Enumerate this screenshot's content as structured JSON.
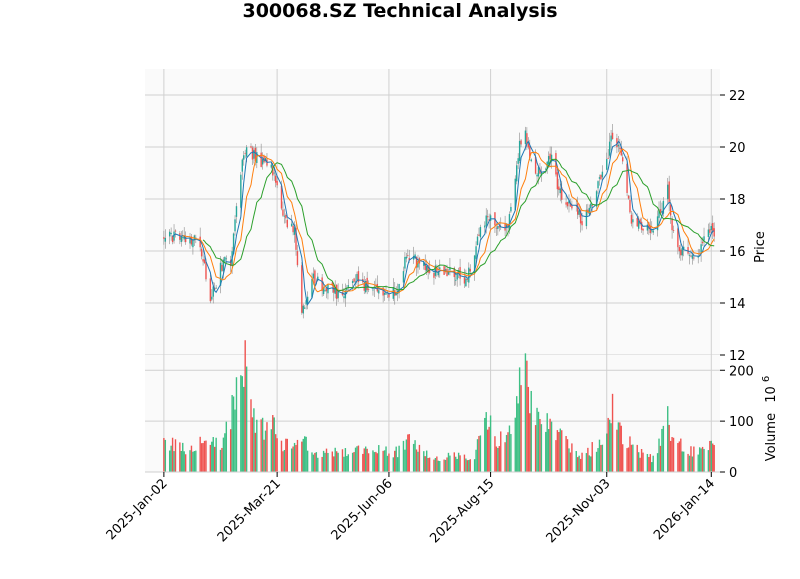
{
  "title": "300068.SZ Technical Analysis",
  "colors": {
    "up": "#26a69a",
    "up_volume": "#3dbf84",
    "down": "#ef5350",
    "ma_fast": "#1f77b4",
    "ma_mid": "#ff7f0e",
    "ma_slow": "#2ca02c",
    "panel_bg": "#fafafa",
    "grid": "#d0d0d0"
  },
  "chart_data": {
    "type": "candlestick",
    "title": "300068.SZ Technical Analysis",
    "price_panel": {
      "ylabel": "Price",
      "ylim": [
        12,
        23
      ],
      "yticks": [
        12,
        14,
        16,
        18,
        20,
        22
      ],
      "ytick_labels": [
        "12",
        "14",
        "16",
        "18",
        "20",
        "22"
      ],
      "grid": true
    },
    "volume_panel": {
      "ylabel": "Volume",
      "yunit_label": "10",
      "yunit_exponent": "6",
      "ylim": [
        0,
        230
      ],
      "yticks": [
        0,
        100,
        200
      ],
      "ytick_labels": [
        "0",
        "100",
        "200"
      ],
      "grid": true
    },
    "xlim": [
      "2024-12-20",
      "2026-01-20"
    ],
    "x_ticks": [
      "2025-01-02",
      "2025-03-21",
      "2025-06-06",
      "2025-08-15",
      "2025-11-03",
      "2026-01-14"
    ],
    "x_tick_labels": [
      "2025-Jan-02",
      "2025-Mar-21",
      "2025-Jun-06",
      "2025-Aug-15",
      "2025-Nov-03",
      "2026-Jan-14"
    ],
    "price_keypoints": [
      [
        "2025-01-02",
        16.6
      ],
      [
        "2025-01-10",
        16.5
      ],
      [
        "2025-01-20",
        16.5
      ],
      [
        "2025-01-27",
        16.2
      ],
      [
        "2025-02-03",
        14.2
      ],
      [
        "2025-02-08",
        15.0
      ],
      [
        "2025-02-12",
        15.6
      ],
      [
        "2025-02-17",
        15.6
      ],
      [
        "2025-02-23",
        18.8
      ],
      [
        "2025-02-28",
        20.2
      ],
      [
        "2025-03-03",
        19.8
      ],
      [
        "2025-03-08",
        19.5
      ],
      [
        "2025-03-12",
        19.3
      ],
      [
        "2025-03-16",
        19.6
      ],
      [
        "2025-03-20",
        18.5
      ],
      [
        "2025-03-26",
        17.2
      ],
      [
        "2025-04-02",
        16.8
      ],
      [
        "2025-04-07",
        13.5
      ],
      [
        "2025-04-10",
        14.3
      ],
      [
        "2025-04-15",
        15.0
      ],
      [
        "2025-04-22",
        14.5
      ],
      [
        "2025-04-28",
        14.6
      ],
      [
        "2025-05-02",
        14.2
      ],
      [
        "2025-05-10",
        14.8
      ],
      [
        "2025-05-15",
        15.1
      ],
      [
        "2025-05-20",
        14.7
      ],
      [
        "2025-05-25",
        14.6
      ],
      [
        "2025-05-30",
        14.5
      ],
      [
        "2025-06-05",
        14.4
      ],
      [
        "2025-06-12",
        14.5
      ],
      [
        "2025-06-18",
        15.9
      ],
      [
        "2025-06-25",
        15.6
      ],
      [
        "2025-07-01",
        15.3
      ],
      [
        "2025-07-08",
        15.2
      ],
      [
        "2025-07-15",
        15.2
      ],
      [
        "2025-07-22",
        15.1
      ],
      [
        "2025-07-29",
        14.8
      ],
      [
        "2025-08-04",
        15.9
      ],
      [
        "2025-08-08",
        17.0
      ],
      [
        "2025-08-13",
        17.3
      ],
      [
        "2025-08-18",
        16.9
      ],
      [
        "2025-08-22",
        16.8
      ],
      [
        "2025-08-27",
        17.0
      ],
      [
        "2025-09-01",
        19.0
      ],
      [
        "2025-09-04",
        20.2
      ],
      [
        "2025-09-08",
        20.5
      ],
      [
        "2025-09-12",
        19.5
      ],
      [
        "2025-09-17",
        19.0
      ],
      [
        "2025-09-22",
        19.3
      ],
      [
        "2025-09-26",
        19.8
      ],
      [
        "2025-09-30",
        18.5
      ],
      [
        "2025-10-06",
        17.8
      ],
      [
        "2025-10-12",
        17.6
      ],
      [
        "2025-10-17",
        17.2
      ],
      [
        "2025-10-21",
        17.4
      ],
      [
        "2025-10-25",
        17.8
      ],
      [
        "2025-10-30",
        19.0
      ],
      [
        "2025-11-03",
        19.6
      ],
      [
        "2025-11-07",
        20.4
      ],
      [
        "2025-11-11",
        20.0
      ],
      [
        "2025-11-15",
        19.3
      ],
      [
        "2025-11-20",
        17.0
      ],
      [
        "2025-11-25",
        17.1
      ],
      [
        "2025-11-30",
        16.8
      ],
      [
        "2025-12-05",
        17.0
      ],
      [
        "2025-12-10",
        17.5
      ],
      [
        "2025-12-15",
        18.4
      ],
      [
        "2025-12-18",
        17.0
      ],
      [
        "2025-12-22",
        16.2
      ],
      [
        "2025-12-27",
        15.9
      ],
      [
        "2025-12-31",
        15.8
      ],
      [
        "2026-01-05",
        16.0
      ],
      [
        "2026-01-10",
        16.4
      ],
      [
        "2026-01-14",
        16.9
      ],
      [
        "2026-01-16",
        16.8
      ]
    ],
    "volume_keypoints": [
      [
        "2025-01-02",
        60
      ],
      [
        "2025-01-15",
        45
      ],
      [
        "2025-01-27",
        55
      ],
      [
        "2025-02-05",
        60
      ],
      [
        "2025-02-12",
        55
      ],
      [
        "2025-02-18",
        120
      ],
      [
        "2025-02-24",
        215
      ],
      [
        "2025-03-01",
        190
      ],
      [
        "2025-03-06",
        110
      ],
      [
        "2025-03-12",
        85
      ],
      [
        "2025-03-18",
        100
      ],
      [
        "2025-03-25",
        55
      ],
      [
        "2025-04-02",
        45
      ],
      [
        "2025-04-08",
        65
      ],
      [
        "2025-04-15",
        40
      ],
      [
        "2025-04-25",
        35
      ],
      [
        "2025-05-05",
        40
      ],
      [
        "2025-05-15",
        45
      ],
      [
        "2025-05-25",
        35
      ],
      [
        "2025-06-01",
        45
      ],
      [
        "2025-06-06",
        40
      ],
      [
        "2025-06-15",
        40
      ],
      [
        "2025-06-20",
        95
      ],
      [
        "2025-06-27",
        45
      ],
      [
        "2025-07-05",
        30
      ],
      [
        "2025-07-15",
        30
      ],
      [
        "2025-07-25",
        30
      ],
      [
        "2025-08-05",
        35
      ],
      [
        "2025-08-10",
        120
      ],
      [
        "2025-08-14",
        95
      ],
      [
        "2025-08-20",
        60
      ],
      [
        "2025-08-27",
        70
      ],
      [
        "2025-09-02",
        150
      ],
      [
        "2025-09-06",
        195
      ],
      [
        "2025-09-12",
        150
      ],
      [
        "2025-09-18",
        100
      ],
      [
        "2025-09-25",
        95
      ],
      [
        "2025-10-01",
        85
      ],
      [
        "2025-10-08",
        50
      ],
      [
        "2025-10-15",
        30
      ],
      [
        "2025-10-22",
        40
      ],
      [
        "2025-10-28",
        60
      ],
      [
        "2025-11-03",
        70
      ],
      [
        "2025-11-07",
        120
      ],
      [
        "2025-11-13",
        80
      ],
      [
        "2025-11-20",
        55
      ],
      [
        "2025-11-27",
        35
      ],
      [
        "2025-12-05",
        25
      ],
      [
        "2025-12-10",
        60
      ],
      [
        "2025-12-15",
        100
      ],
      [
        "2025-12-22",
        55
      ],
      [
        "2025-12-29",
        40
      ],
      [
        "2026-01-05",
        45
      ],
      [
        "2026-01-10",
        55
      ],
      [
        "2026-01-16",
        50
      ]
    ],
    "moving_averages": [
      {
        "window": 5,
        "color": "#1f77b4"
      },
      {
        "window": 10,
        "color": "#ff7f0e"
      },
      {
        "window": 20,
        "color": "#2ca02c"
      }
    ]
  }
}
